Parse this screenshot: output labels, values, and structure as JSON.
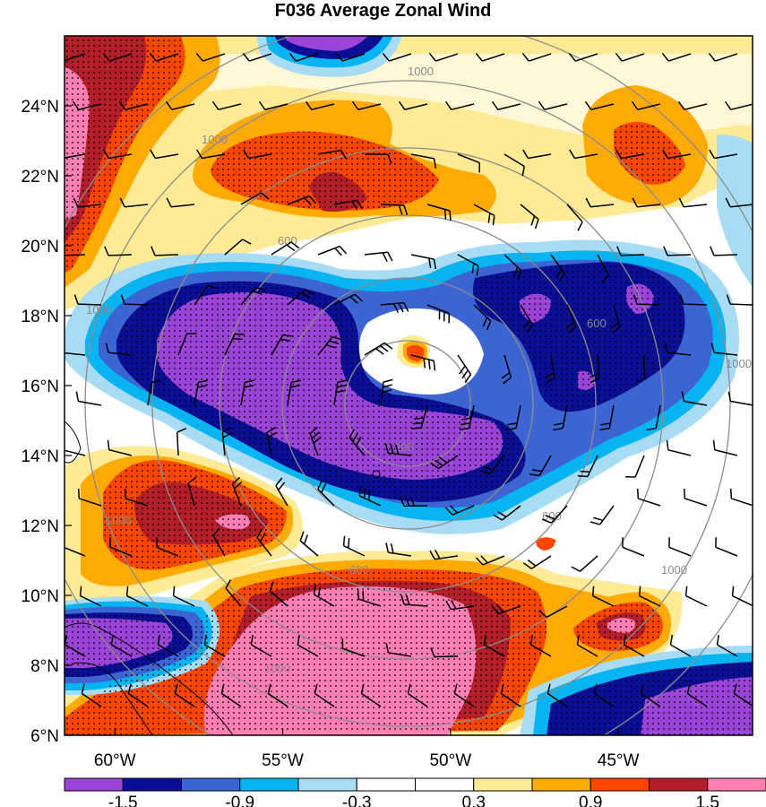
{
  "title": "F036 Average Zonal Wind",
  "map": {
    "lat_labels": [
      "24°N",
      "22°N",
      "20°N",
      "18°N",
      "16°N",
      "14°N",
      "12°N",
      "10°N",
      "8°N",
      "6°N"
    ],
    "lat_values": [
      24,
      22,
      20,
      18,
      16,
      14,
      12,
      10,
      8,
      6
    ],
    "lon_labels": [
      "60°W",
      "55°W",
      "50°W",
      "45°W"
    ],
    "lon_values": [
      -60,
      -55,
      -50,
      -45
    ],
    "lon_range": [
      -61.5,
      -41
    ],
    "lat_range": [
      6,
      26
    ]
  },
  "colorbar": {
    "labels": [
      "-1.5",
      "-0.9",
      "-0.3",
      "0.3",
      "0.9",
      "1.5"
    ],
    "levels": [
      -1.5,
      -1.2,
      -0.9,
      -0.6,
      -0.3,
      0,
      0.3,
      0.6,
      0.9,
      1.2,
      1.5
    ],
    "colors": [
      "#9b45d8",
      "#0a0f96",
      "#3c64d2",
      "#05b4f0",
      "#a8dcf5",
      "#ffffff",
      "#ffffff",
      "#ffeb96",
      "#ffaa05",
      "#ff4600",
      "#b41e28",
      "#ff7fb4"
    ]
  },
  "range_rings": {
    "labels": [
      "200",
      "600",
      "600",
      "600",
      "600",
      "1000",
      "1000",
      "1000",
      "1000",
      "1000",
      "1000",
      "1000"
    ]
  },
  "palette": {
    "purple": "#9b45d8",
    "navy": "#0a0f96",
    "blue": "#3c64d2",
    "cyan": "#05b4f0",
    "lightblue": "#a8dcf5",
    "yellow": "#ffeb96",
    "orange": "#ffaa05",
    "redorange": "#ff4600",
    "darkred": "#b41e28",
    "pink": "#ff7fb4"
  }
}
